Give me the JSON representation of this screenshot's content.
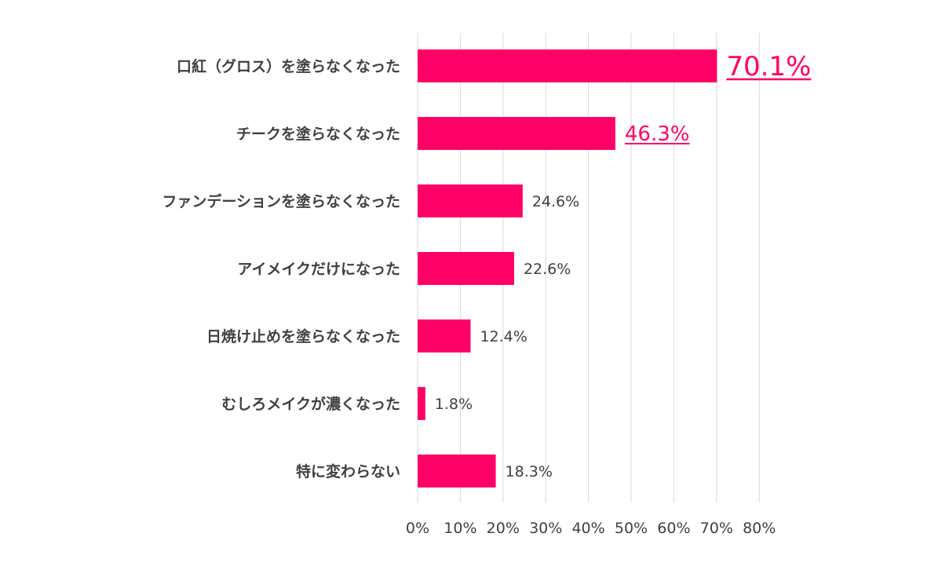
{
  "chart_data": {
    "type": "bar",
    "orientation": "horizontal",
    "categories": [
      "口紅（グロス）を塗らなくなった",
      "チークを塗らなくなった",
      "ファンデーションを塗らなくなった",
      "アイメイクだけになった",
      "日焼け止めを塗らなくなった",
      "むしろメイクが濃くなった",
      "特に変わらない"
    ],
    "values": [
      70.1,
      46.3,
      24.6,
      22.6,
      12.4,
      1.8,
      18.3
    ],
    "value_labels": [
      "70.1%",
      "46.3%",
      "24.6%",
      "22.6%",
      "12.4%",
      "1.8%",
      "18.3%"
    ],
    "highlighted_values": [
      0,
      1
    ],
    "xlim": [
      0,
      80
    ],
    "x_ticks": [
      "0%",
      "10%",
      "20%",
      "30%",
      "40%",
      "50%",
      "60%",
      "70%",
      "80%"
    ],
    "grid": "vertical",
    "bar_color": "#ff0066",
    "highlight_color": "#ff0066",
    "grid_color": "#d9d9d9",
    "text_color": "#404040"
  }
}
